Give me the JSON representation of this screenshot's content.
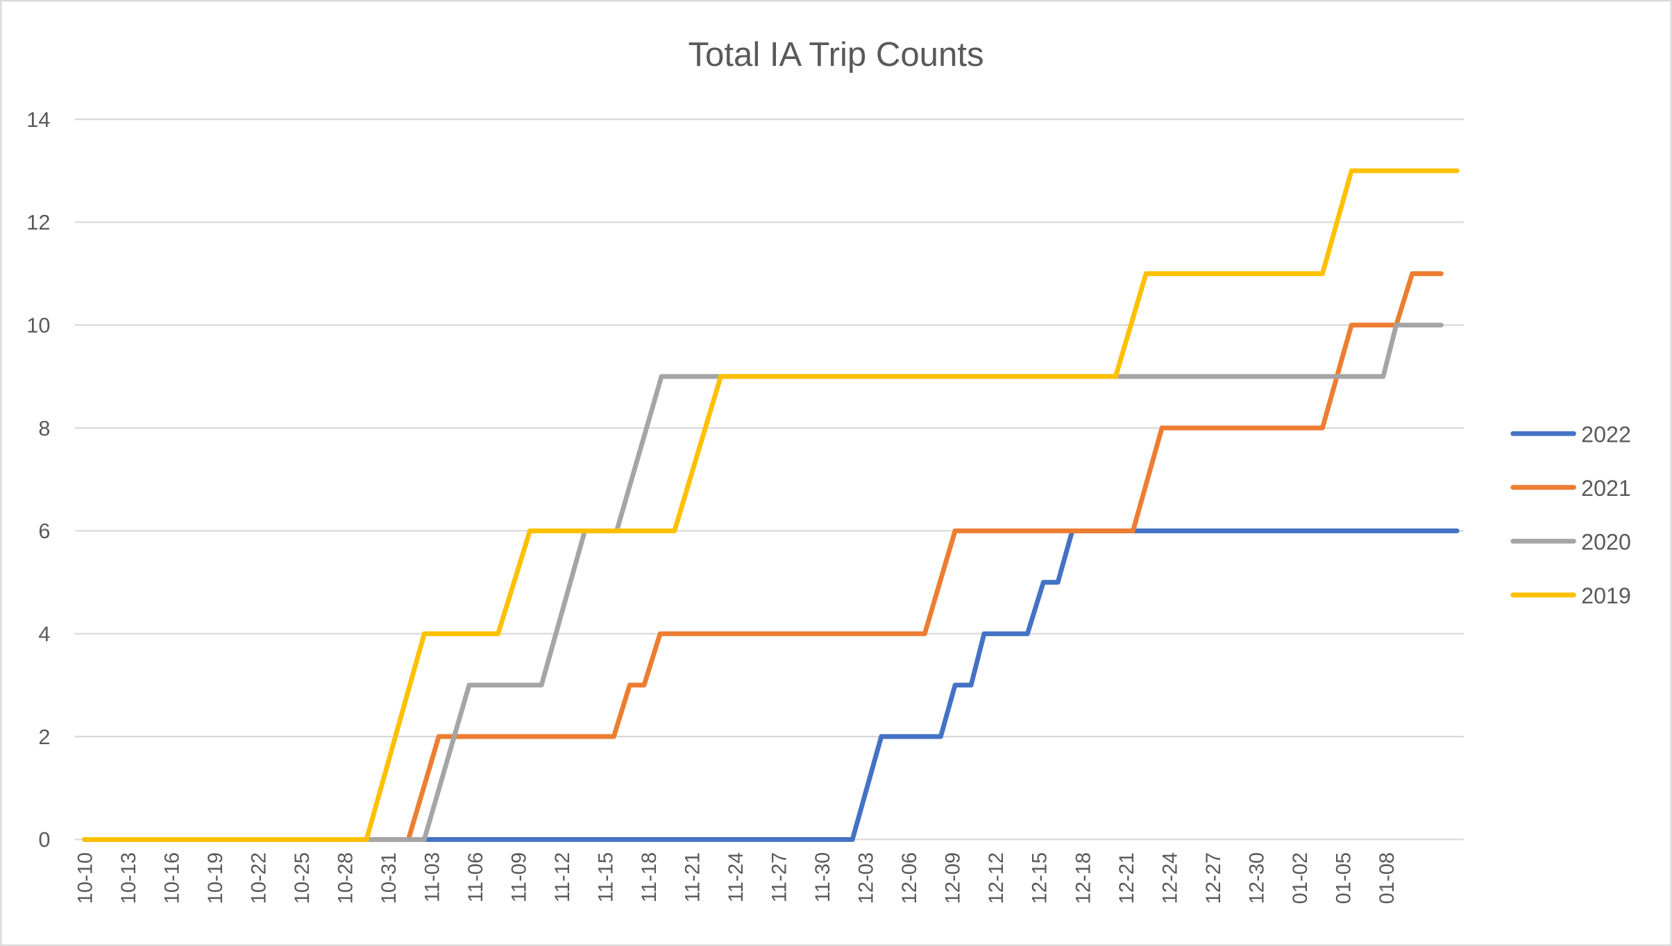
{
  "chart_data": {
    "type": "line",
    "title": "Total IA Trip Counts",
    "xlabel": "",
    "ylabel": "",
    "ylim": [
      0,
      14
    ],
    "y_ticks": [
      0,
      2,
      4,
      6,
      8,
      10,
      12,
      14
    ],
    "grid": true,
    "legend_position": "right",
    "x_unit": "days since 10-10",
    "x_tick_step_days": 3,
    "x_tick_labels": [
      "10-10",
      "10-13",
      "10-16",
      "10-19",
      "10-22",
      "10-25",
      "10-28",
      "10-31",
      "11-03",
      "11-06",
      "11-09",
      "11-12",
      "11-15",
      "11-18",
      "11-21",
      "11-24",
      "11-27",
      "11-30",
      "12-03",
      "12-06",
      "12-09",
      "12-12",
      "12-15",
      "12-18",
      "12-21",
      "12-24",
      "12-27",
      "12-30",
      "01-02",
      "01-05",
      "01-08"
    ],
    "series": [
      {
        "name": "2019",
        "color": "#FFC000",
        "points": [
          [
            0,
            0
          ],
          [
            19.5,
            0
          ],
          [
            23.5,
            4
          ],
          [
            28.6,
            4
          ],
          [
            30.8,
            6
          ],
          [
            40.8,
            6
          ],
          [
            44,
            9
          ],
          [
            71.3,
            9
          ],
          [
            73.4,
            11
          ],
          [
            85.6,
            11
          ],
          [
            87.6,
            13
          ],
          [
            94.9,
            13
          ]
        ]
      },
      {
        "name": "2020",
        "color": "#A5A5A5",
        "points": [
          [
            0,
            0
          ],
          [
            23.5,
            0
          ],
          [
            26.6,
            3
          ],
          [
            31.6,
            3
          ],
          [
            34.6,
            6
          ],
          [
            36.8,
            6
          ],
          [
            39.9,
            9
          ],
          [
            89.8,
            9
          ],
          [
            90.7,
            10
          ],
          [
            93.8,
            10
          ]
        ]
      },
      {
        "name": "2021",
        "color": "#ED7D31",
        "points": [
          [
            0,
            0
          ],
          [
            22.4,
            0
          ],
          [
            24.5,
            2
          ],
          [
            36.6,
            2
          ],
          [
            37.7,
            3
          ],
          [
            38.7,
            3
          ],
          [
            39.8,
            4
          ],
          [
            58.1,
            4
          ],
          [
            60.2,
            6
          ],
          [
            72.5,
            6
          ],
          [
            74.5,
            8
          ],
          [
            85.6,
            8
          ],
          [
            87.6,
            10
          ],
          [
            90.7,
            10
          ],
          [
            91.8,
            11
          ],
          [
            93.8,
            11
          ]
        ]
      },
      {
        "name": "2022",
        "color": "#4472C4",
        "points": [
          [
            0,
            0
          ],
          [
            53.1,
            0
          ],
          [
            55.1,
            2
          ],
          [
            59.2,
            2
          ],
          [
            60.2,
            3
          ],
          [
            61.3,
            3
          ],
          [
            62.2,
            4
          ],
          [
            65.2,
            4
          ],
          [
            66.3,
            5
          ],
          [
            67.3,
            5
          ],
          [
            68.3,
            6
          ],
          [
            94.9,
            6
          ]
        ]
      }
    ],
    "legend_order": [
      "2022",
      "2021",
      "2020",
      "2019"
    ]
  }
}
